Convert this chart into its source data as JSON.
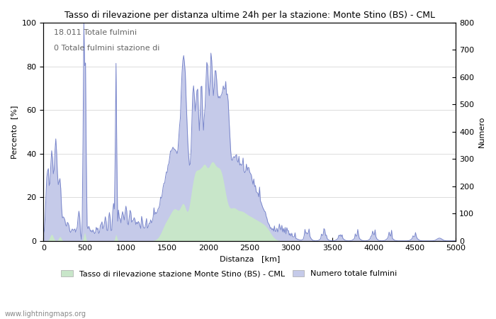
{
  "title": "Tasso di rilevazione per distanza ultime 24h per la stazione: Monte Stino (BS) - CML",
  "xlabel": "Distanza   [km]",
  "ylabel_left": "Percento  [%]",
  "ylabel_right": "Numero",
  "annotation_line1": "18.011 Totale fulmini",
  "annotation_line2": "0 Totale fulmini stazione di",
  "legend1": "Tasso di rilevazione stazione Monte Stino (BS) - CML",
  "legend2": "Numero totale fulmini",
  "watermark": "www.lightningmaps.org",
  "xlim": [
    0,
    5000
  ],
  "ylim_left": [
    0,
    100
  ],
  "ylim_right": [
    0,
    800
  ],
  "xticks": [
    0,
    500,
    1000,
    1500,
    2000,
    2500,
    3000,
    3500,
    4000,
    4500,
    5000
  ],
  "yticks_left": [
    0,
    20,
    40,
    60,
    80,
    100
  ],
  "yticks_right": [
    0,
    100,
    200,
    300,
    400,
    500,
    600,
    700,
    800
  ],
  "fill_color_green": "#c8e6c9",
  "fill_color_blue": "#c5cae9",
  "line_color_blue": "#7986cb",
  "background_color": "#ffffff",
  "grid_color": "#bbbbbb"
}
